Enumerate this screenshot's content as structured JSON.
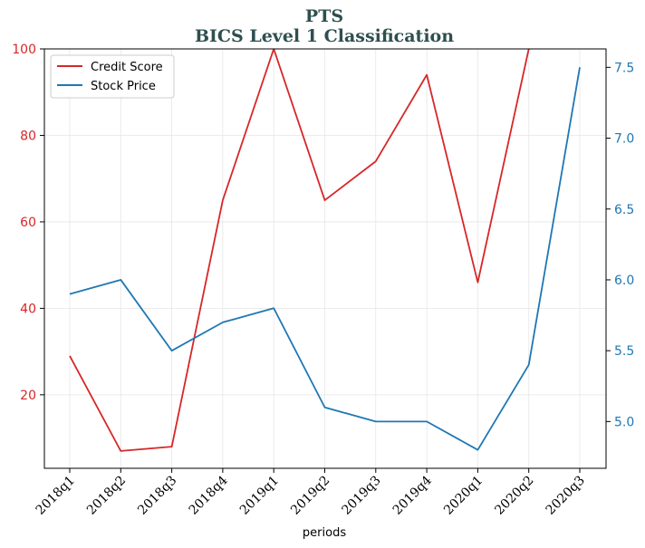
{
  "chart_data": {
    "type": "line",
    "title": "PTS",
    "subtitle": "BICS Level 1 Classification",
    "xlabel": "periods",
    "categories": [
      "2018q1",
      "2018q2",
      "2018q3",
      "2018q4",
      "2019q1",
      "2019q2",
      "2019q3",
      "2019q4",
      "2020q1",
      "2020q2",
      "2020q3"
    ],
    "y_left": {
      "ylim": [
        3,
        100
      ],
      "ticks": [
        20,
        40,
        60,
        80,
        100
      ],
      "color": "#d62728"
    },
    "y_right": {
      "ylim": [
        4.67,
        7.63
      ],
      "ticks": [
        5.0,
        5.5,
        6.0,
        6.5,
        7.0,
        7.5
      ],
      "color": "#1f77b4"
    },
    "series": [
      {
        "name": "Credit Score",
        "axis": "left",
        "color": "#d62728",
        "values": [
          29,
          7,
          8,
          65,
          100,
          65,
          74,
          94,
          46,
          100,
          102
        ]
      },
      {
        "name": "Stock Price",
        "axis": "right",
        "color": "#1f77b4",
        "values": [
          5.9,
          6.0,
          5.5,
          5.7,
          5.8,
          5.1,
          5.0,
          5.0,
          4.8,
          5.4,
          7.5
        ]
      }
    ],
    "grid": true,
    "legend_position": "top-left"
  }
}
